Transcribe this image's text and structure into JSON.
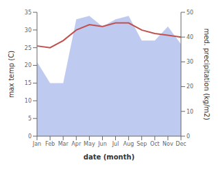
{
  "chart_data": {
    "type": "line",
    "x_label": "date (month)",
    "y_label": "max temp (C)",
    "y2_label": "med. precipitation (kg/m2)",
    "categories": [
      "Jan",
      "Feb",
      "Mar",
      "Apr",
      "May",
      "Jun",
      "Jul",
      "Aug",
      "Sep",
      "Oct",
      "Nov",
      "Dec"
    ],
    "series": [
      {
        "type": "area",
        "color": "#b8c4ee",
        "values": [
          21,
          15,
          15,
          33,
          34,
          31,
          33,
          34,
          27,
          27,
          31,
          26
        ]
      },
      {
        "type": "line",
        "color": "#c0504d",
        "values": [
          25.5,
          25.0,
          27.0,
          30.0,
          31.5,
          31.0,
          32.0,
          32.0,
          30.0,
          29.0,
          28.5,
          28.0
        ]
      }
    ],
    "ylim": [
      0,
      35
    ],
    "yticks": [
      0,
      5,
      10,
      15,
      20,
      25,
      30,
      35
    ],
    "y2lim": [
      0,
      50
    ],
    "y2ticks": [
      0,
      10,
      20,
      30,
      40,
      50
    ],
    "grid": false
  }
}
